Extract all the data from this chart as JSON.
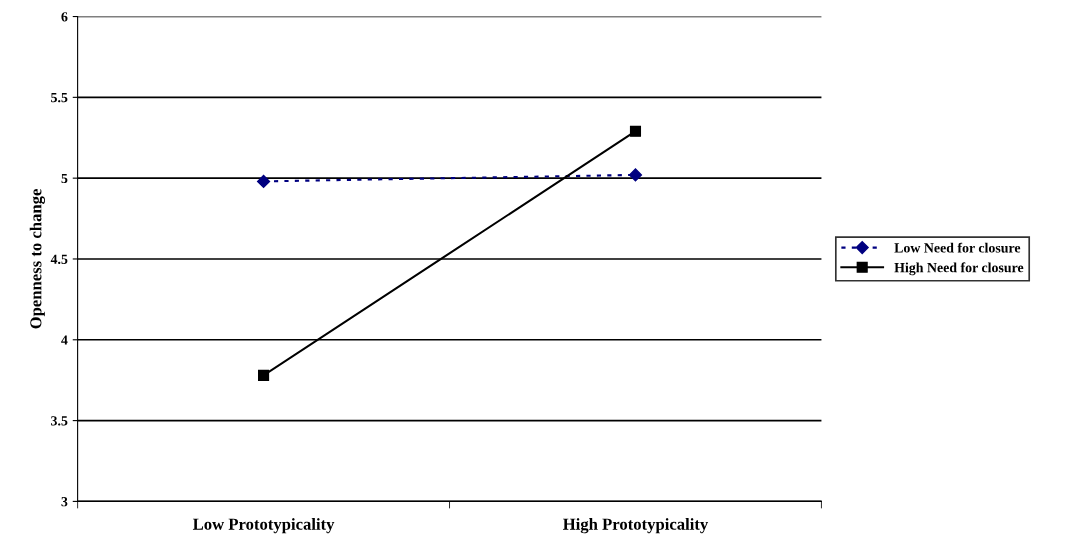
{
  "chart_data": {
    "type": "line",
    "ylabel": "Openness to change",
    "categories": [
      "Low Prototypicality",
      "High Prototypicality"
    ],
    "series": [
      {
        "name": "Low Need for closure",
        "color": "#000080",
        "values": [
          4.98,
          5.02
        ],
        "marker": "diamond",
        "line_style": "dotted"
      },
      {
        "name": "High Need for closure",
        "color": "#000000",
        "values": [
          3.78,
          5.29
        ],
        "marker": "square",
        "line_style": "solid"
      }
    ],
    "ylim": [
      3,
      6
    ],
    "yticks": [
      3,
      3.5,
      4,
      4.5,
      5,
      5.5,
      6
    ],
    "grid": "y",
    "legend": "right"
  }
}
